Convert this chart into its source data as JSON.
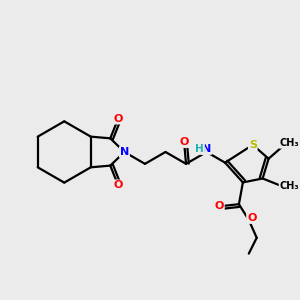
{
  "background_color": "#ebebeb",
  "atom_colors": {
    "C": "#000000",
    "N": "#0000ff",
    "O": "#ff0000",
    "S": "#bbbb00",
    "H": "#20b0b0"
  },
  "figsize": [
    3.0,
    3.0
  ],
  "dpi": 100
}
